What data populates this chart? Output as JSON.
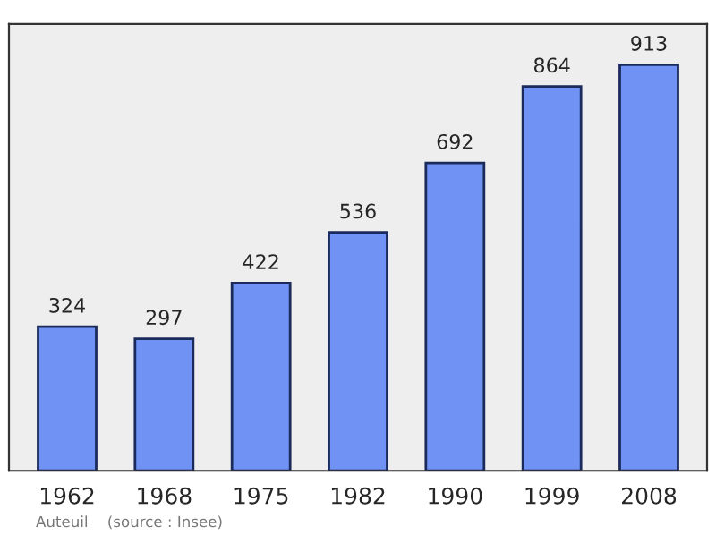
{
  "chart_data": {
    "type": "bar",
    "categories": [
      "1962",
      "1968",
      "1975",
      "1982",
      "1990",
      "1999",
      "2008"
    ],
    "values": [
      324,
      297,
      422,
      536,
      692,
      864,
      913
    ],
    "color": "#7092f5",
    "data_labels": true,
    "grid": false,
    "annotations": [
      "Auteuil    (source : Insee)"
    ]
  }
}
